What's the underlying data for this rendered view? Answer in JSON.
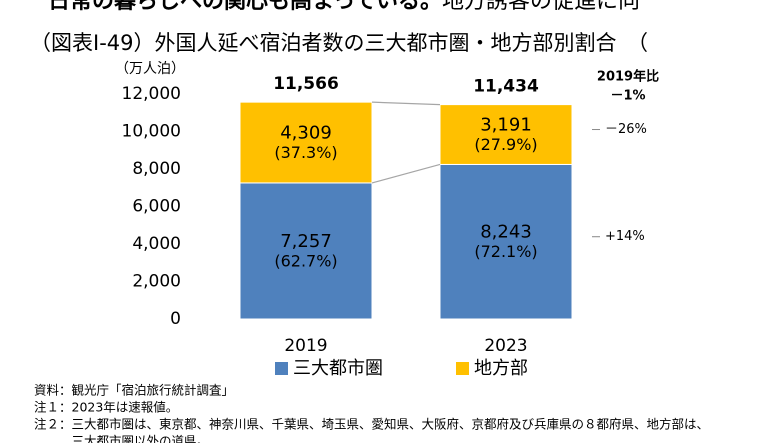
{
  "header": {
    "bold": "日常の暮らしへの関心も高まっている。",
    "rest": "地方誘客の促進に向"
  },
  "chart_data": {
    "type": "stacked_bar",
    "title": "（図表Ⅰ-49）外国人延べ宿泊者数の三大都市圏・地方部別割合　（",
    "y_label": "（万人泊）",
    "categories": [
      "2019",
      "2023"
    ],
    "series": [
      {
        "name": "三大都市圏",
        "color": "#4f81bd",
        "values": [
          7257,
          8243
        ],
        "value_labels": [
          "7,257",
          "8,243"
        ],
        "share_labels": [
          "(62.7%)",
          "(72.1%)"
        ],
        "change_label": "+14%"
      },
      {
        "name": "地方部",
        "color": "#ffc000",
        "values": [
          4309,
          3191
        ],
        "value_labels": [
          "4,309",
          "3,191"
        ],
        "share_labels": [
          "(37.3%)",
          "(27.9%)"
        ],
        "change_label": "－26%"
      }
    ],
    "totals": [
      11566,
      11434
    ],
    "total_labels": [
      "11,566",
      "11,434"
    ],
    "comparison_title": "2019年比",
    "total_change_label": "－1%",
    "ylim": [
      0,
      12000
    ],
    "yticks": [
      0,
      {
        "value": 2000,
        "label": "2,000"
      },
      {
        "value": 4000,
        "label": "4,000"
      },
      {
        "value": 6000,
        "label": "6,000"
      },
      {
        "value": 8000,
        "label": "8,000"
      },
      {
        "value": 10000,
        "label": "10,000"
      },
      {
        "value": 12000,
        "label": "12,000"
      }
    ],
    "legend": "bottom"
  },
  "notes": [
    "資料：観光庁「宿泊旅行統計調査」",
    "注１：2023年は速報値。",
    "注２：三大都市圏は、東京都、神奈川県、千葉県、埼玉県、愛知県、大阪府、京都府及び兵庫県の８都府県、地方部は、",
    "　　　三大都市圏以外の道県。"
  ]
}
